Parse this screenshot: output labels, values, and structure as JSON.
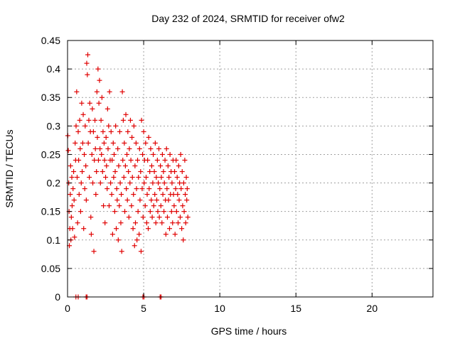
{
  "chart_data": {
    "type": "scatter",
    "title": "Day 232 of 2024, SRMTID for receiver ofw2",
    "xlabel": "GPS time / hours",
    "ylabel": "SRMTID / TECUs",
    "xlim": [
      0,
      24
    ],
    "ylim": [
      0,
      0.45
    ],
    "xticks": [
      "0",
      "5",
      "10",
      "15",
      "20"
    ],
    "yticks": [
      "0",
      "0.05",
      "0.1",
      "0.15",
      "0.2",
      "0.25",
      "0.3",
      "0.35",
      "0.4",
      "0.45"
    ],
    "grid": true,
    "marker": "plus",
    "color": "#e00000",
    "series": [
      {
        "points": [
          [
            0.02,
            0.283
          ],
          [
            0.05,
            0.257
          ],
          [
            0.08,
            0.2
          ],
          [
            0.1,
            0.15
          ],
          [
            0.12,
            0.09
          ],
          [
            0.15,
            0.12
          ],
          [
            0.18,
            0.18
          ],
          [
            0.2,
            0.23
          ],
          [
            0.22,
            0.1
          ],
          [
            0.25,
            0.14
          ],
          [
            0.28,
            0.21
          ],
          [
            0.3,
            0.16
          ],
          [
            0.33,
            0.12
          ],
          [
            0.36,
            0.19
          ],
          [
            0.4,
            0.22
          ],
          [
            0.43,
            0.17
          ],
          [
            0.46,
            0.105
          ],
          [
            0.5,
            0.27
          ],
          [
            0.53,
            0.24
          ],
          [
            0.56,
            0.3
          ],
          [
            0.6,
            0.36
          ],
          [
            0.63,
            0.21
          ],
          [
            0.66,
            0.13
          ],
          [
            0.7,
            0.29
          ],
          [
            0.73,
            0.24
          ],
          [
            0.76,
            0.18
          ],
          [
            0.8,
            0.31
          ],
          [
            0.83,
            0.26
          ],
          [
            0.86,
            0.15
          ],
          [
            0.9,
            0.2
          ],
          [
            0.93,
            0.34
          ],
          [
            0.96,
            0.22
          ],
          [
            1.0,
            0.27
          ],
          [
            1.03,
            0.32
          ],
          [
            1.06,
            0.12
          ],
          [
            1.1,
            0.25
          ],
          [
            1.13,
            0.19
          ],
          [
            1.16,
            0.3
          ],
          [
            1.2,
            0.23
          ],
          [
            1.23,
            0.17
          ],
          [
            1.26,
            0.41
          ],
          [
            1.3,
            0.39
          ],
          [
            1.33,
            0.425
          ],
          [
            1.36,
            0.27
          ],
          [
            1.4,
            0.31
          ],
          [
            1.43,
            0.21
          ],
          [
            1.46,
            0.34
          ],
          [
            1.5,
            0.29
          ],
          [
            1.53,
            0.14
          ],
          [
            1.56,
            0.11
          ],
          [
            1.6,
            0.25
          ],
          [
            1.63,
            0.33
          ],
          [
            1.66,
            0.2
          ],
          [
            1.7,
            0.29
          ],
          [
            1.73,
            0.08
          ],
          [
            1.76,
            0.24
          ],
          [
            1.8,
            0.31
          ],
          [
            1.83,
            0.26
          ],
          [
            1.86,
            0.18
          ],
          [
            1.9,
            0.22
          ],
          [
            1.93,
            0.36
          ],
          [
            1.96,
            0.28
          ],
          [
            2.0,
            0.4
          ],
          [
            2.03,
            0.24
          ],
          [
            2.06,
            0.34
          ],
          [
            2.1,
            0.38
          ],
          [
            2.13,
            0.26
          ],
          [
            2.16,
            0.2
          ],
          [
            2.2,
            0.31
          ],
          [
            2.23,
            0.25
          ],
          [
            2.26,
            0.35
          ],
          [
            2.3,
            0.22
          ],
          [
            2.33,
            0.29
          ],
          [
            2.36,
            0.16
          ],
          [
            2.4,
            0.27
          ],
          [
            2.43,
            0.24
          ],
          [
            2.46,
            0.13
          ],
          [
            2.5,
            0.21
          ],
          [
            2.53,
            0.28
          ],
          [
            2.56,
            0.23
          ],
          [
            2.6,
            0.19
          ],
          [
            2.63,
            0.33
          ],
          [
            2.66,
            0.26
          ],
          [
            2.7,
            0.3
          ],
          [
            2.73,
            0.16
          ],
          [
            2.76,
            0.36
          ],
          [
            2.8,
            0.24
          ],
          [
            2.83,
            0.2
          ],
          [
            2.86,
            0.29
          ],
          [
            2.9,
            0.18
          ],
          [
            2.93,
            0.24
          ],
          [
            2.96,
            0.11
          ],
          [
            3.0,
            0.27
          ],
          [
            3.03,
            0.21
          ],
          [
            3.06,
            0.25
          ],
          [
            3.1,
            0.15
          ],
          [
            3.13,
            0.22
          ],
          [
            3.16,
            0.3
          ],
          [
            3.2,
            0.12
          ],
          [
            3.23,
            0.19
          ],
          [
            3.26,
            0.17
          ],
          [
            3.3,
            0.26
          ],
          [
            3.33,
            0.1
          ],
          [
            3.36,
            0.23
          ],
          [
            3.4,
            0.16
          ],
          [
            3.43,
            0.29
          ],
          [
            3.46,
            0.2
          ],
          [
            3.5,
            0.13
          ],
          [
            3.53,
            0.18
          ],
          [
            3.56,
            0.08
          ],
          [
            3.6,
            0.36
          ],
          [
            3.63,
            0.24
          ],
          [
            3.66,
            0.31
          ],
          [
            3.7,
            0.21
          ],
          [
            3.73,
            0.27
          ],
          [
            3.76,
            0.15
          ],
          [
            3.8,
            0.23
          ],
          [
            3.83,
            0.32
          ],
          [
            3.86,
            0.19
          ],
          [
            3.9,
            0.25
          ],
          [
            3.93,
            0.17
          ],
          [
            3.96,
            0.29
          ],
          [
            4.0,
            0.22
          ],
          [
            4.03,
            0.14
          ],
          [
            4.06,
            0.26
          ],
          [
            4.1,
            0.2
          ],
          [
            4.13,
            0.31
          ],
          [
            4.16,
            0.24
          ],
          [
            4.2,
            0.16
          ],
          [
            4.23,
            0.28
          ],
          [
            4.26,
            0.21
          ],
          [
            4.3,
            0.12
          ],
          [
            4.33,
            0.18
          ],
          [
            4.36,
            0.3
          ],
          [
            4.4,
            0.09
          ],
          [
            4.43,
            0.23
          ],
          [
            4.46,
            0.13
          ],
          [
            4.5,
            0.27
          ],
          [
            4.53,
            0.19
          ],
          [
            4.56,
            0.1
          ],
          [
            4.6,
            0.24
          ],
          [
            4.63,
            0.15
          ],
          [
            4.66,
            0.21
          ],
          [
            4.7,
            0.11
          ],
          [
            4.73,
            0.26
          ],
          [
            4.76,
            0.17
          ],
          [
            4.8,
            0.22
          ],
          [
            4.83,
            0.08
          ],
          [
            4.86,
            0.31
          ],
          [
            4.9,
            0.19
          ],
          [
            4.93,
            0.25
          ],
          [
            4.96,
            0.14
          ],
          [
            5.0,
            0.29
          ],
          [
            5.03,
            0.2
          ],
          [
            5.06,
            0.24
          ],
          [
            5.1,
            0.16
          ],
          [
            5.13,
            0.27
          ],
          [
            5.16,
            0.21
          ],
          [
            5.2,
            0.13
          ],
          [
            5.23,
            0.18
          ],
          [
            5.26,
            0.24
          ],
          [
            5.3,
            0.12
          ],
          [
            5.33,
            0.28
          ],
          [
            5.36,
            0.19
          ],
          [
            5.4,
            0.22
          ],
          [
            5.43,
            0.15
          ],
          [
            5.46,
            0.26
          ],
          [
            5.5,
            0.17
          ],
          [
            5.53,
            0.23
          ],
          [
            5.56,
            0.14
          ],
          [
            5.6,
            0.2
          ],
          [
            5.63,
            0.25
          ],
          [
            5.66,
            0.16
          ],
          [
            5.7,
            0.22
          ],
          [
            5.73,
            0.18
          ],
          [
            5.76,
            0.27
          ],
          [
            5.8,
            0.13
          ],
          [
            5.83,
            0.21
          ],
          [
            5.86,
            0.17
          ],
          [
            5.9,
            0.24
          ],
          [
            5.93,
            0.15
          ],
          [
            5.96,
            0.2
          ],
          [
            6.0,
            0.26
          ],
          [
            6.03,
            0.14
          ],
          [
            6.06,
            0.19
          ],
          [
            6.1,
            0.23
          ],
          [
            6.13,
            0.16
          ],
          [
            6.16,
            0.21
          ],
          [
            6.2,
            0.13
          ],
          [
            6.23,
            0.25
          ],
          [
            6.26,
            0.18
          ],
          [
            6.3,
            0.22
          ],
          [
            6.33,
            0.15
          ],
          [
            6.36,
            0.2
          ],
          [
            6.4,
            0.24
          ],
          [
            6.43,
            0.17
          ],
          [
            6.46,
            0.11
          ],
          [
            6.5,
            0.26
          ],
          [
            6.53,
            0.19
          ],
          [
            6.56,
            0.14
          ],
          [
            6.6,
            0.23
          ],
          [
            6.63,
            0.17
          ],
          [
            6.66,
            0.21
          ],
          [
            6.7,
            0.12
          ],
          [
            6.73,
            0.25
          ],
          [
            6.76,
            0.18
          ],
          [
            6.8,
            0.22
          ],
          [
            6.83,
            0.15
          ],
          [
            6.86,
            0.2
          ],
          [
            6.9,
            0.13
          ],
          [
            6.93,
            0.24
          ],
          [
            6.96,
            0.18
          ],
          [
            7.0,
            0.16
          ],
          [
            7.03,
            0.22
          ],
          [
            7.06,
            0.11
          ],
          [
            7.1,
            0.19
          ],
          [
            7.13,
            0.24
          ],
          [
            7.16,
            0.15
          ],
          [
            7.2,
            0.21
          ],
          [
            7.23,
            0.18
          ],
          [
            7.26,
            0.13
          ],
          [
            7.3,
            0.23
          ],
          [
            7.33,
            0.17
          ],
          [
            7.36,
            0.2
          ],
          [
            7.4,
            0.14
          ],
          [
            7.43,
            0.25
          ],
          [
            7.46,
            0.19
          ],
          [
            7.5,
            0.12
          ],
          [
            7.53,
            0.22
          ],
          [
            7.56,
            0.16
          ],
          [
            7.6,
            0.1
          ],
          [
            7.63,
            0.2
          ],
          [
            7.66,
            0.15
          ],
          [
            7.7,
            0.24
          ],
          [
            7.73,
            0.18
          ],
          [
            7.76,
            0.13
          ],
          [
            7.8,
            0.21
          ],
          [
            7.83,
            0.17
          ],
          [
            7.86,
            0.19
          ],
          [
            7.9,
            0.14
          ],
          [
            0.55,
            0.0
          ],
          [
            0.7,
            0.0
          ],
          [
            1.22,
            0.0
          ],
          [
            1.28,
            0.0
          ],
          [
            4.95,
            0.0
          ],
          [
            5.02,
            0.0
          ],
          [
            6.08,
            0.0
          ],
          [
            6.14,
            0.0
          ]
        ]
      }
    ]
  }
}
